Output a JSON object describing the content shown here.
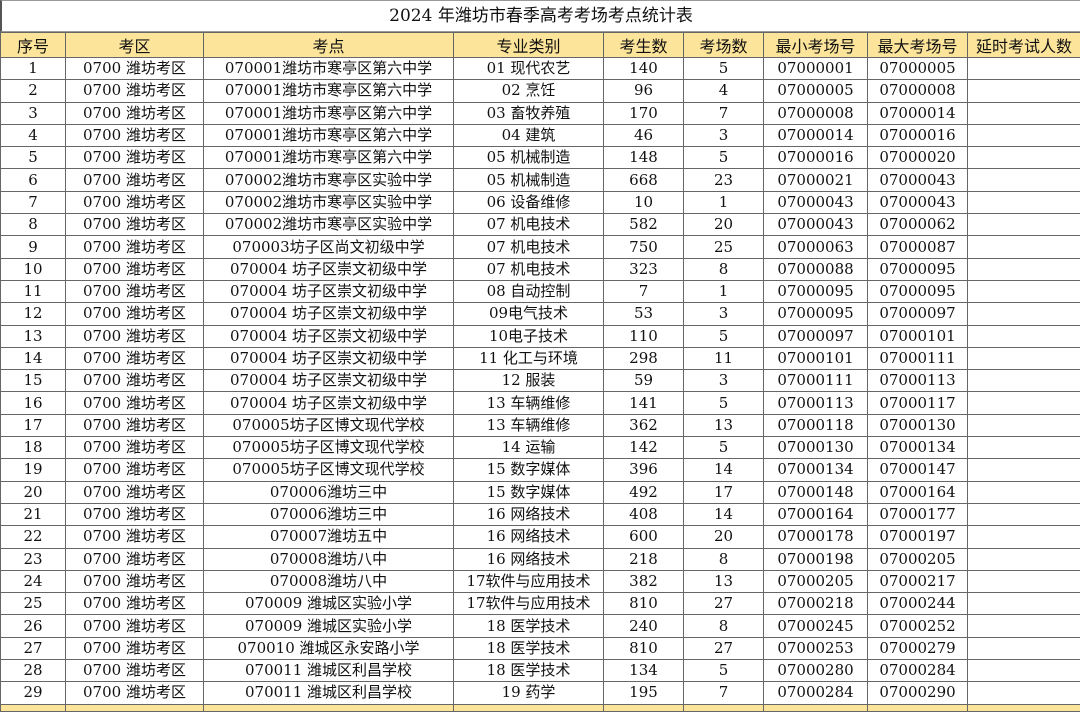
{
  "title": "2024 年潍坊市春季高考考场考点统计表",
  "headers": [
    "序号",
    "考区",
    "考点",
    "专业类别",
    "考生数",
    "考场数",
    "最小考场号",
    "最大考场号",
    "延时考试人数"
  ],
  "rows": [
    [
      "1",
      "0700 潍坊考区",
      "070001潍坊市寒亭区第六中学",
      "01 现代农艺",
      "140",
      "5",
      "07000001",
      "07000005",
      ""
    ],
    [
      "2",
      "0700 潍坊考区",
      "070001潍坊市寒亭区第六中学",
      "02 烹饪",
      "96",
      "4",
      "07000005",
      "07000008",
      ""
    ],
    [
      "3",
      "0700 潍坊考区",
      "070001潍坊市寒亭区第六中学",
      "03 畜牧养殖",
      "170",
      "7",
      "07000008",
      "07000014",
      ""
    ],
    [
      "4",
      "0700 潍坊考区",
      "070001潍坊市寒亭区第六中学",
      "04 建筑",
      "46",
      "3",
      "07000014",
      "07000016",
      ""
    ],
    [
      "5",
      "0700 潍坊考区",
      "070001潍坊市寒亭区第六中学",
      "05 机械制造",
      "148",
      "5",
      "07000016",
      "07000020",
      ""
    ],
    [
      "6",
      "0700 潍坊考区",
      "070002潍坊市寒亭区实验中学",
      "05 机械制造",
      "668",
      "23",
      "07000021",
      "07000043",
      ""
    ],
    [
      "7",
      "0700 潍坊考区",
      "070002潍坊市寒亭区实验中学",
      "06 设备维修",
      "10",
      "1",
      "07000043",
      "07000043",
      ""
    ],
    [
      "8",
      "0700 潍坊考区",
      "070002潍坊市寒亭区实验中学",
      "07 机电技术",
      "582",
      "20",
      "07000043",
      "07000062",
      ""
    ],
    [
      "9",
      "0700 潍坊考区",
      "070003坊子区尚文初级中学",
      "07 机电技术",
      "750",
      "25",
      "07000063",
      "07000087",
      ""
    ],
    [
      "10",
      "0700 潍坊考区",
      "070004 坊子区崇文初级中学",
      "07 机电技术",
      "323",
      "8",
      "07000088",
      "07000095",
      ""
    ],
    [
      "11",
      "0700 潍坊考区",
      "070004 坊子区崇文初级中学",
      "08 自动控制",
      "7",
      "1",
      "07000095",
      "07000095",
      ""
    ],
    [
      "12",
      "0700 潍坊考区",
      "070004 坊子区崇文初级中学",
      "09电气技术",
      "53",
      "3",
      "07000095",
      "07000097",
      ""
    ],
    [
      "13",
      "0700 潍坊考区",
      "070004 坊子区崇文初级中学",
      "10电子技术",
      "110",
      "5",
      "07000097",
      "07000101",
      ""
    ],
    [
      "14",
      "0700 潍坊考区",
      "070004 坊子区崇文初级中学",
      "11 化工与环境",
      "298",
      "11",
      "07000101",
      "07000111",
      ""
    ],
    [
      "15",
      "0700 潍坊考区",
      "070004 坊子区崇文初级中学",
      "12 服装",
      "59",
      "3",
      "07000111",
      "07000113",
      ""
    ],
    [
      "16",
      "0700 潍坊考区",
      "070004 坊子区崇文初级中学",
      "13 车辆维修",
      "141",
      "5",
      "07000113",
      "07000117",
      ""
    ],
    [
      "17",
      "0700 潍坊考区",
      "070005坊子区博文现代学校",
      "13 车辆维修",
      "362",
      "13",
      "07000118",
      "07000130",
      ""
    ],
    [
      "18",
      "0700 潍坊考区",
      "070005坊子区博文现代学校",
      "14 运输",
      "142",
      "5",
      "07000130",
      "07000134",
      ""
    ],
    [
      "19",
      "0700 潍坊考区",
      "070005坊子区博文现代学校",
      "15 数字媒体",
      "396",
      "14",
      "07000134",
      "07000147",
      ""
    ],
    [
      "20",
      "0700 潍坊考区",
      "070006潍坊三中",
      "15 数字媒体",
      "492",
      "17",
      "07000148",
      "07000164",
      ""
    ],
    [
      "21",
      "0700 潍坊考区",
      "070006潍坊三中",
      "16 网络技术",
      "408",
      "14",
      "07000164",
      "07000177",
      ""
    ],
    [
      "22",
      "0700 潍坊考区",
      "070007潍坊五中",
      "16 网络技术",
      "600",
      "20",
      "07000178",
      "07000197",
      ""
    ],
    [
      "23",
      "0700 潍坊考区",
      "070008潍坊八中",
      "16 网络技术",
      "218",
      "8",
      "07000198",
      "07000205",
      ""
    ],
    [
      "24",
      "0700 潍坊考区",
      "070008潍坊八中",
      "17软件与应用技术",
      "382",
      "13",
      "07000205",
      "07000217",
      ""
    ],
    [
      "25",
      "0700 潍坊考区",
      "070009 潍城区实验小学",
      "17软件与应用技术",
      "810",
      "27",
      "07000218",
      "07000244",
      ""
    ],
    [
      "26",
      "0700 潍坊考区",
      "070009 潍城区实验小学",
      "18 医学技术",
      "240",
      "8",
      "07000245",
      "07000252",
      ""
    ],
    [
      "27",
      "0700 潍坊考区",
      "070010 潍城区永安路小学",
      "18 医学技术",
      "810",
      "27",
      "07000253",
      "07000279",
      ""
    ],
    [
      "28",
      "0700 潍坊考区",
      "070011 潍城区利昌学校",
      "18 医学技术",
      "134",
      "5",
      "07000280",
      "07000284",
      ""
    ],
    [
      "29",
      "0700 潍坊考区",
      "070011 潍城区利昌学校",
      "19 药学",
      "195",
      "7",
      "07000284",
      "07000290",
      ""
    ]
  ]
}
